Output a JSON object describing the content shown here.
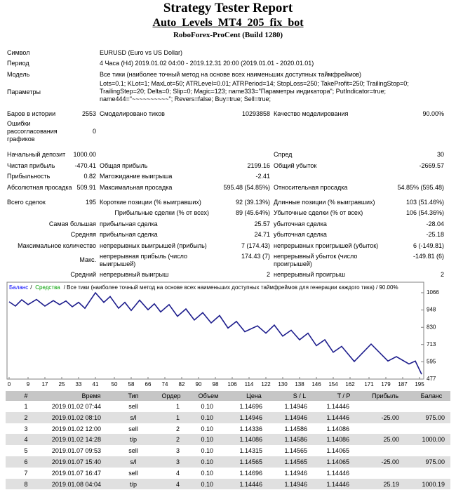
{
  "header": {
    "title": "Strategy Tester Report",
    "expert": "Auto_Levels_MT4_205_fix_bot",
    "server": "RoboForex-ProCent (Build 1280)"
  },
  "summary": [
    [
      "Символ",
      "EURUSD (Euro vs US Dollar)"
    ],
    [
      "Период",
      "4 Часа (H4) 2019.01.02 04:00 - 2019.12.31 20:00 (2019.01.01 - 2020.01.01)"
    ],
    [
      "Модель",
      "Все тики (наиболее точный метод на основе всех наименьших доступных таймфреймов)"
    ],
    [
      "Параметры",
      "Lots=0.1; KLot=1; MaxLot=50; ATRLevel=0.01; ATRPeriod=14; StopLoss=250; TakeProfit=250; TrailingStop=0; TrailingStep=20; Delta=0; Slip=0; Magic=123; name333=\"Параметры индикатора\"; PutIndicator=true; name444=\"~~~~~~~~~~\"; Revers=false; Buy=true; Sell=true;"
    ],
    [
      "Баров в истории",
      "2553",
      "Смоделировано тиков",
      "10293858",
      "Качество моделирования",
      "90.00%"
    ],
    [
      "Ошибки рассогласования графиков",
      "0"
    ],
    [
      "Начальный депозит",
      "1000.00",
      "Спред",
      "30"
    ],
    [
      "Чистая прибыль",
      "-470.41",
      "Общая прибыль",
      "2199.16",
      "Общий убыток",
      "-2669.57"
    ],
    [
      "Прибыльность",
      "0.82",
      "Матожидание выигрыша",
      "-2.41"
    ],
    [
      "Абсолютная просадка",
      "509.91",
      "Максимальная просадка",
      "595.48 (54.85%)",
      "Относительная просадка",
      "54.85% (595.48)"
    ],
    [
      "Всего сделок",
      "195",
      "Короткие позиции (% выигравших)",
      "92 (39.13%)",
      "Длинные позиции (% выигравших)",
      "103 (51.46%)"
    ],
    [
      "Прибыльные сделки (% от всех)",
      "89 (45.64%)",
      "Убыточные сделки (% от всех)",
      "106 (54.36%)"
    ],
    [
      "Самая большая",
      "прибыльная сделка",
      "25.57",
      "убыточная сделка",
      "-28.04"
    ],
    [
      "Средняя",
      "прибыльная сделка",
      "24.71",
      "убыточная сделка",
      "-25.18"
    ],
    [
      "Максимальное количество",
      "непрерывных выигрышей (прибыль)",
      "7 (174.43)",
      "непрерывных проигрышей (убыток)",
      "6 (-149.81)"
    ],
    [
      "Макс.",
      "непрерывная прибыль (число выигрышей)",
      "174.43 (7)",
      "непрерывный убыток (число проигрышей)",
      "-149.81 (6)"
    ],
    [
      "Средний",
      "непрерывный выигрыш",
      "2",
      "непрерывный проигрыш",
      "2"
    ]
  ],
  "chart_data": {
    "type": "line",
    "legend": [
      {
        "name": "Баланс",
        "color": "#0000ff"
      },
      {
        "name": "Средства",
        "color": "#00a000"
      }
    ],
    "caption": "/ Все тики (наиболее точный метод на основе всех наименьших доступных таймфреймов для генерации каждого тика) / 90.00%",
    "series": [
      {
        "name": "Баланс",
        "color": "#1c1c8c",
        "x": [
          0,
          3,
          6,
          9,
          13,
          17,
          21,
          24,
          27,
          30,
          33,
          36,
          41,
          45,
          48,
          52,
          55,
          58,
          62,
          66,
          69,
          72,
          76,
          80,
          84,
          88,
          92,
          96,
          100,
          104,
          108,
          112,
          118,
          122,
          126,
          130,
          134,
          138,
          142,
          146,
          150,
          154,
          158,
          164,
          172,
          180,
          184,
          190,
          193,
          196
        ],
        "values": [
          1004,
          975,
          1018,
          985,
          1020,
          975,
          1012,
          985,
          1010,
          970,
          1000,
          960,
          1066,
          1000,
          1040,
          960,
          1000,
          945,
          1015,
          950,
          990,
          935,
          985,
          905,
          955,
          880,
          930,
          860,
          910,
          825,
          870,
          800,
          840,
          790,
          845,
          770,
          810,
          745,
          790,
          705,
          745,
          660,
          700,
          597,
          716,
          600,
          630,
          580,
          600,
          510
        ]
      }
    ],
    "xlim": [
      -1,
      197
    ],
    "ylim": [
      477,
      1128
    ],
    "xticks": [
      0,
      9,
      17,
      25,
      33,
      41,
      50,
      58,
      66,
      74,
      82,
      90,
      98,
      106,
      114,
      122,
      130,
      138,
      146,
      154,
      162,
      171,
      179,
      187,
      195
    ],
    "yticks": [
      1066,
      948,
      830,
      713,
      595,
      477
    ],
    "grid": false
  },
  "trades": {
    "headers": [
      "#",
      "Время",
      "Тип",
      "Ордер",
      "Объем",
      "Цена",
      "S / L",
      "T / P",
      "Прибыль",
      "Баланс"
    ],
    "rows": [
      [
        "1",
        "2019.01.02 07:44",
        "sell",
        "1",
        "0.10",
        "1.14696",
        "1.14946",
        "1.14446"
      ],
      [
        "2",
        "2019.01.02 08:10",
        "s/l",
        "1",
        "0.10",
        "1.14946",
        "1.14946",
        "1.14446",
        "-25.00",
        "975.00"
      ],
      [
        "3",
        "2019.01.02 12:00",
        "sell",
        "2",
        "0.10",
        "1.14336",
        "1.14586",
        "1.14086"
      ],
      [
        "4",
        "2019.01.02 14:28",
        "t/p",
        "2",
        "0.10",
        "1.14086",
        "1.14586",
        "1.14086",
        "25.00",
        "1000.00"
      ],
      [
        "5",
        "2019.01.07 09:53",
        "sell",
        "3",
        "0.10",
        "1.14315",
        "1.14565",
        "1.14065"
      ],
      [
        "6",
        "2019.01.07 15:40",
        "s/l",
        "3",
        "0.10",
        "1.14565",
        "1.14565",
        "1.14065",
        "-25.00",
        "975.00"
      ],
      [
        "7",
        "2019.01.07 16:47",
        "sell",
        "4",
        "0.10",
        "1.14696",
        "1.14946",
        "1.14446"
      ],
      [
        "8",
        "2019.01.08 04:04",
        "t/p",
        "4",
        "0.10",
        "1.14446",
        "1.14946",
        "1.14446",
        "25.19",
        "1000.19"
      ]
    ]
  }
}
